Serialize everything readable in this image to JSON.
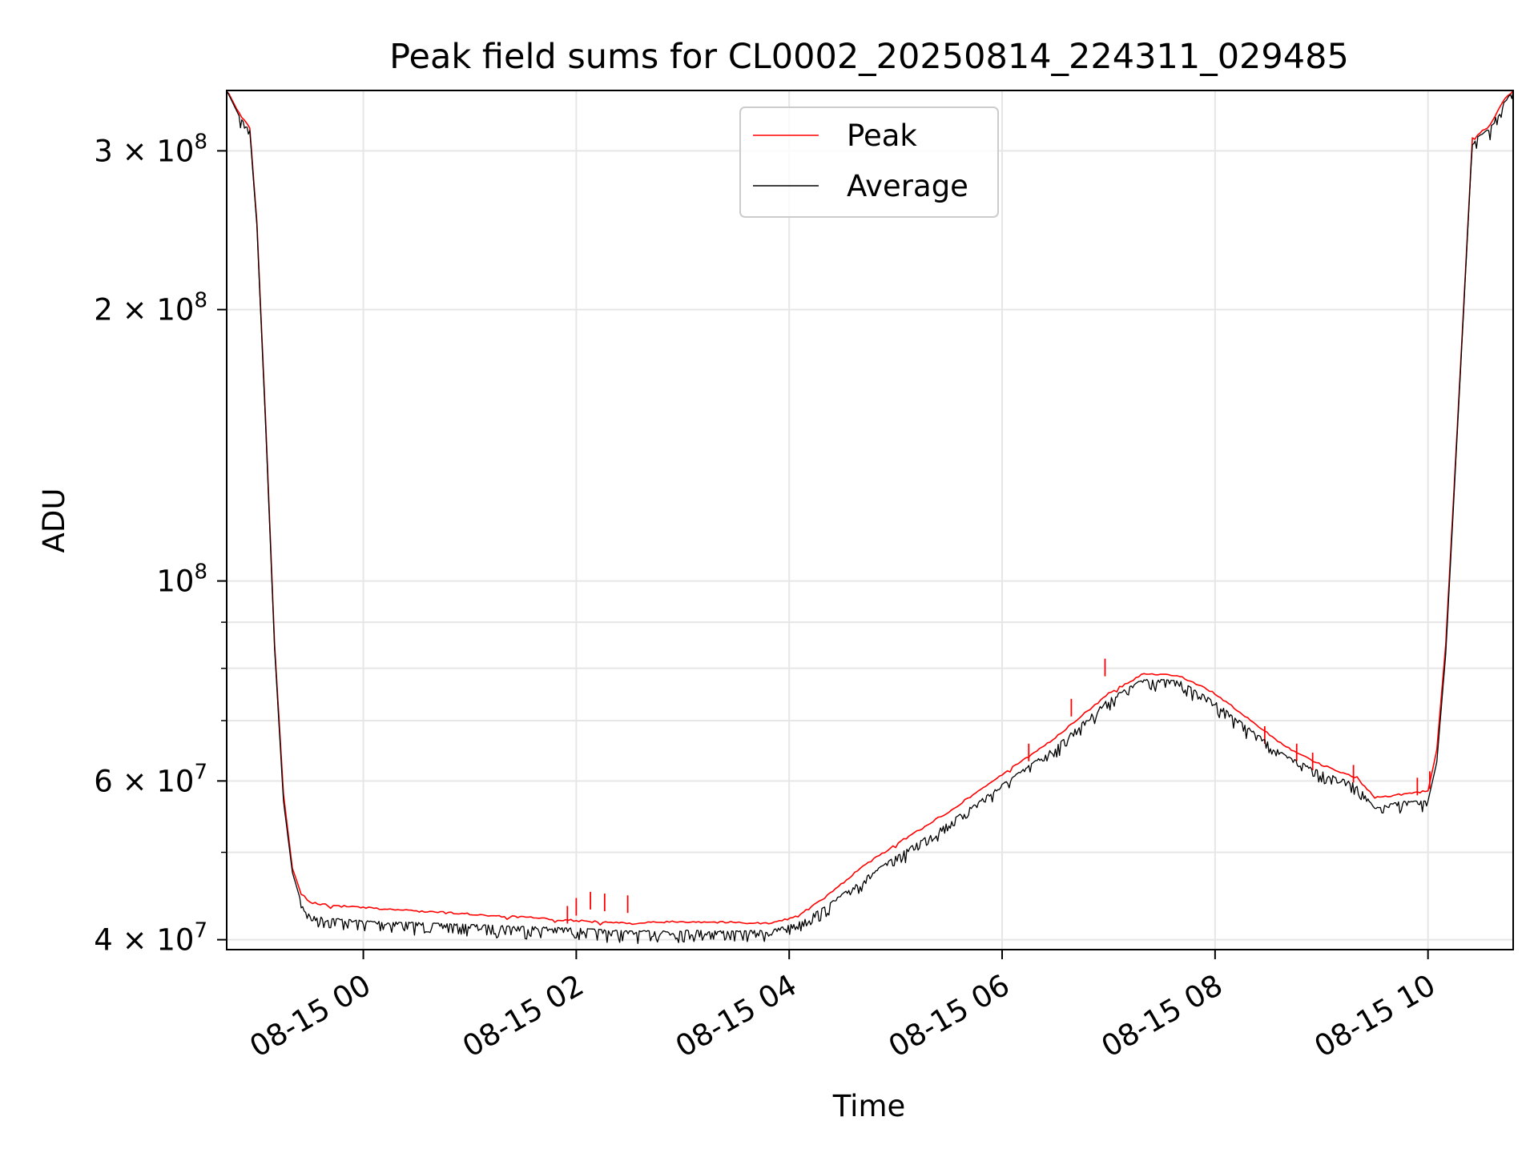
{
  "chart_data": {
    "type": "line",
    "title": "Peak field sums for CL0002_20250814_224311_029485",
    "xlabel": "Time",
    "ylabel": "ADU",
    "yscale": "log",
    "xlim": [
      "2025-08-14 22:43",
      "2025-08-15 10:48"
    ],
    "ylim": [
      39000000,
      350000000
    ],
    "grid": true,
    "legend": "upper center",
    "x_ticks": [
      {
        "t": "2025-08-15 00:00",
        "label": "08-15 00"
      },
      {
        "t": "2025-08-15 02:00",
        "label": "08-15 02"
      },
      {
        "t": "2025-08-15 04:00",
        "label": "08-15 04"
      },
      {
        "t": "2025-08-15 06:00",
        "label": "08-15 06"
      },
      {
        "t": "2025-08-15 08:00",
        "label": "08-15 08"
      },
      {
        "t": "2025-08-15 10:00",
        "label": "08-15 10"
      }
    ],
    "y_ticks": [
      {
        "value": 40000000,
        "label": "4 × 10",
        "exp": "7"
      },
      {
        "value": 60000000,
        "label": "6 × 10",
        "exp": "7"
      },
      {
        "value": 100000000,
        "label": "10",
        "exp": "8"
      },
      {
        "value": 200000000,
        "label": "2 × 10",
        "exp": "8"
      },
      {
        "value": 300000000,
        "label": "3 × 10",
        "exp": "8"
      }
    ],
    "y_minor_ticks": [
      50000000,
      70000000,
      80000000,
      90000000
    ],
    "series": [
      {
        "name": "Peak",
        "color": "#ff0000",
        "points": [
          [
            "2025-08-14 22:43",
            350000000
          ],
          [
            "2025-08-14 22:50",
            330000000
          ],
          [
            "2025-08-14 22:56",
            318000000
          ],
          [
            "2025-08-14 23:00",
            250000000
          ],
          [
            "2025-08-14 23:05",
            150000000
          ],
          [
            "2025-08-14 23:10",
            85000000
          ],
          [
            "2025-08-14 23:15",
            58000000
          ],
          [
            "2025-08-14 23:20",
            48000000
          ],
          [
            "2025-08-14 23:25",
            45000000
          ],
          [
            "2025-08-14 23:30",
            44000000
          ],
          [
            "2025-08-14 23:40",
            43700000
          ],
          [
            "2025-08-15 00:00",
            43400000
          ],
          [
            "2025-08-15 01:00",
            42700000
          ],
          [
            "2025-08-15 02:00",
            42000000
          ],
          [
            "2025-08-15 02:30",
            41700000
          ],
          [
            "2025-08-15 03:00",
            41900000
          ],
          [
            "2025-08-15 03:30",
            41800000
          ],
          [
            "2025-08-15 03:50",
            41700000
          ],
          [
            "2025-08-15 04:05",
            42500000
          ],
          [
            "2025-08-15 04:20",
            44500000
          ],
          [
            "2025-08-15 04:40",
            48000000
          ],
          [
            "2025-08-15 05:00",
            51000000
          ],
          [
            "2025-08-15 05:30",
            55500000
          ],
          [
            "2025-08-15 06:00",
            61000000
          ],
          [
            "2025-08-15 06:30",
            67000000
          ],
          [
            "2025-08-15 07:00",
            75000000
          ],
          [
            "2025-08-15 07:20",
            79000000
          ],
          [
            "2025-08-15 07:40",
            78500000
          ],
          [
            "2025-08-15 08:00",
            75000000
          ],
          [
            "2025-08-15 08:20",
            70000000
          ],
          [
            "2025-08-15 08:40",
            65500000
          ],
          [
            "2025-08-15 09:00",
            62500000
          ],
          [
            "2025-08-15 09:20",
            60500000
          ],
          [
            "2025-08-15 09:30",
            57500000
          ],
          [
            "2025-08-15 09:45",
            58000000
          ],
          [
            "2025-08-15 10:00",
            58500000
          ],
          [
            "2025-08-15 10:05",
            65000000
          ],
          [
            "2025-08-15 10:10",
            85000000
          ],
          [
            "2025-08-15 10:15",
            130000000
          ],
          [
            "2025-08-15 10:20",
            200000000
          ],
          [
            "2025-08-15 10:25",
            310000000
          ],
          [
            "2025-08-15 10:35",
            320000000
          ],
          [
            "2025-08-15 10:42",
            340000000
          ],
          [
            "2025-08-15 10:48",
            350000000
          ]
        ],
        "spikes": [
          [
            "2025-08-15 01:55",
            43600000
          ],
          [
            "2025-08-15 02:00",
            44500000
          ],
          [
            "2025-08-15 02:08",
            45200000
          ],
          [
            "2025-08-15 02:16",
            45000000
          ],
          [
            "2025-08-15 02:29",
            44800000
          ],
          [
            "2025-08-15 06:15",
            66000000
          ],
          [
            "2025-08-15 06:39",
            74000000
          ],
          [
            "2025-08-15 06:58",
            82000000
          ],
          [
            "2025-08-15 08:28",
            69000000
          ],
          [
            "2025-08-15 08:46",
            66000000
          ],
          [
            "2025-08-15 08:55",
            64500000
          ],
          [
            "2025-08-15 09:18",
            62500000
          ],
          [
            "2025-08-15 09:54",
            60500000
          ],
          [
            "2025-08-15 10:01",
            61500000
          ]
        ]
      },
      {
        "name": "Average",
        "color": "#000000",
        "points": [
          [
            "2025-08-14 22:43",
            350000000
          ],
          [
            "2025-08-14 22:50",
            328000000
          ],
          [
            "2025-08-14 22:56",
            316000000
          ],
          [
            "2025-08-14 23:00",
            248000000
          ],
          [
            "2025-08-14 23:05",
            148000000
          ],
          [
            "2025-08-14 23:10",
            84000000
          ],
          [
            "2025-08-14 23:15",
            57000000
          ],
          [
            "2025-08-14 23:20",
            47500000
          ],
          [
            "2025-08-14 23:25",
            44000000
          ],
          [
            "2025-08-14 23:30",
            42500000
          ],
          [
            "2025-08-14 23:40",
            42300000
          ],
          [
            "2025-08-15 00:00",
            42000000
          ],
          [
            "2025-08-15 01:00",
            41600000
          ],
          [
            "2025-08-15 02:00",
            41200000
          ],
          [
            "2025-08-15 02:30",
            40900000
          ],
          [
            "2025-08-15 03:00",
            41000000
          ],
          [
            "2025-08-15 03:30",
            40900000
          ],
          [
            "2025-08-15 03:50",
            41000000
          ],
          [
            "2025-08-15 04:05",
            41800000
          ],
          [
            "2025-08-15 04:20",
            43500000
          ],
          [
            "2025-08-15 04:40",
            46500000
          ],
          [
            "2025-08-15 05:00",
            49500000
          ],
          [
            "2025-08-15 05:30",
            54000000
          ],
          [
            "2025-08-15 06:00",
            59500000
          ],
          [
            "2025-08-15 06:30",
            65500000
          ],
          [
            "2025-08-15 07:00",
            74000000
          ],
          [
            "2025-08-15 07:20",
            78000000
          ],
          [
            "2025-08-15 07:40",
            77500000
          ],
          [
            "2025-08-15 08:00",
            73500000
          ],
          [
            "2025-08-15 08:20",
            68500000
          ],
          [
            "2025-08-15 08:40",
            64000000
          ],
          [
            "2025-08-15 09:00",
            61500000
          ],
          [
            "2025-08-15 09:20",
            59500000
          ],
          [
            "2025-08-15 09:30",
            56000000
          ],
          [
            "2025-08-15 09:45",
            57000000
          ],
          [
            "2025-08-15 10:00",
            57000000
          ],
          [
            "2025-08-15 10:05",
            63000000
          ],
          [
            "2025-08-15 10:10",
            83000000
          ],
          [
            "2025-08-15 10:15",
            128000000
          ],
          [
            "2025-08-15 10:20",
            198000000
          ],
          [
            "2025-08-15 10:25",
            308000000
          ],
          [
            "2025-08-15 10:35",
            318000000
          ],
          [
            "2025-08-15 10:42",
            338000000
          ],
          [
            "2025-08-15 10:48",
            350000000
          ]
        ]
      }
    ]
  }
}
